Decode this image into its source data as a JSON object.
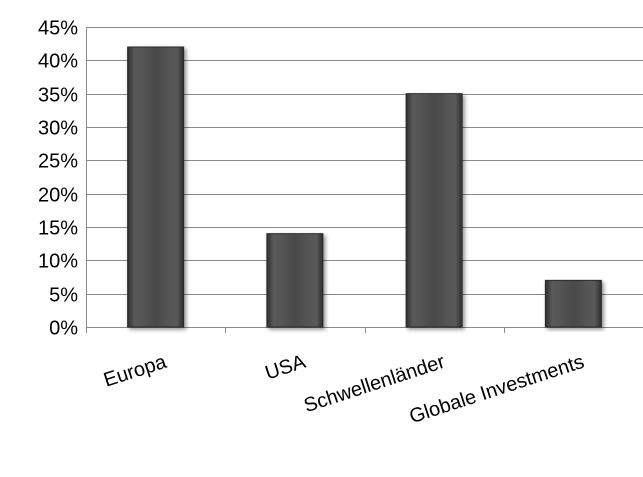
{
  "chart_data": {
    "type": "bar",
    "title": "",
    "xlabel": "",
    "ylabel": "",
    "categories": [
      "Europa",
      "USA",
      "Schwellenländer",
      "Globale Investments"
    ],
    "values": [
      42,
      14,
      35,
      7
    ],
    "ylim": [
      0,
      45
    ],
    "yticks": [
      0,
      5,
      10,
      15,
      20,
      25,
      30,
      35,
      40,
      45
    ],
    "ytick_format": "{v}%",
    "grid": true,
    "legend": "none",
    "bar_color": "#4a4a4a"
  }
}
